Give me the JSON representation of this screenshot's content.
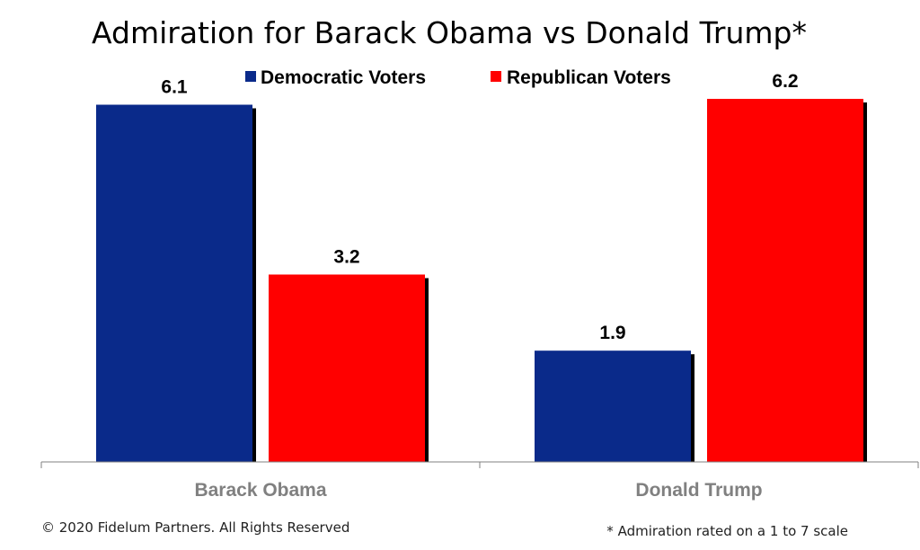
{
  "chart_data": {
    "type": "bar",
    "title": "Admiration for Barack Obama vs Donald Trump*",
    "categories": [
      "Barack Obama",
      "Donald Trump"
    ],
    "series": [
      {
        "name": "Democratic Voters",
        "values": [
          6.1,
          1.9
        ],
        "color": "#0a2a8a"
      },
      {
        "name": "Republican Voters",
        "values": [
          3.2,
          6.2
        ],
        "color": "#ff0000"
      }
    ],
    "ylim": [
      0,
      6.2
    ],
    "grid": false,
    "legend": "top-center",
    "xlabel": "",
    "ylabel": ""
  },
  "footer": {
    "copyright": "© 2020 Fidelum Partners. All Rights Reserved",
    "note": "* Admiration rated on a 1 to 7 scale"
  }
}
